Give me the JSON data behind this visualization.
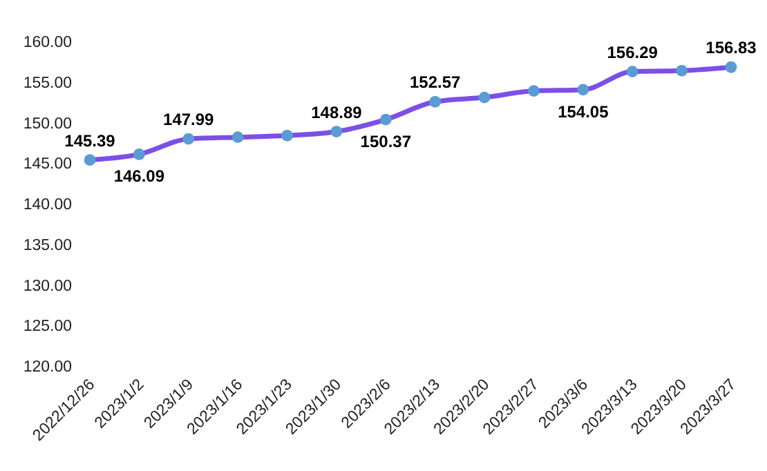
{
  "chart_data": {
    "type": "line",
    "categories": [
      "2022/12/26",
      "2023/1/2",
      "2023/1/9",
      "2023/1/16",
      "2023/1/23",
      "2023/1/30",
      "2023/2/6",
      "2023/2/13",
      "2023/2/20",
      "2023/2/27",
      "2023/3/6",
      "2023/3/13",
      "2023/3/20",
      "2023/3/27"
    ],
    "series": [
      {
        "color": "#7b4fe8",
        "values": [
          145.39,
          146.09,
          147.99,
          148.2,
          148.4,
          148.89,
          150.37,
          152.57,
          153.1,
          153.9,
          154.05,
          156.29,
          156.4,
          156.83
        ],
        "value_labels": [
          "145.39",
          "146.09",
          "147.99",
          null,
          null,
          "148.89",
          "150.37",
          "152.57",
          null,
          null,
          "154.05",
          "156.29",
          null,
          "156.83"
        ]
      }
    ],
    "ylim": [
      120,
      160
    ],
    "yticks": [
      {
        "value": 120,
        "label": "120.00"
      },
      {
        "value": 125,
        "label": "125.00"
      },
      {
        "value": 130,
        "label": "130.00"
      },
      {
        "value": 135,
        "label": "135.00"
      },
      {
        "value": 140,
        "label": "140.00"
      },
      {
        "value": 145,
        "label": "145.00"
      },
      {
        "value": 150,
        "label": "150.00"
      },
      {
        "value": 155,
        "label": "155.00"
      },
      {
        "value": 160,
        "label": "160.00"
      }
    ],
    "grid": false,
    "marker": "circle",
    "line_style": "solid"
  }
}
